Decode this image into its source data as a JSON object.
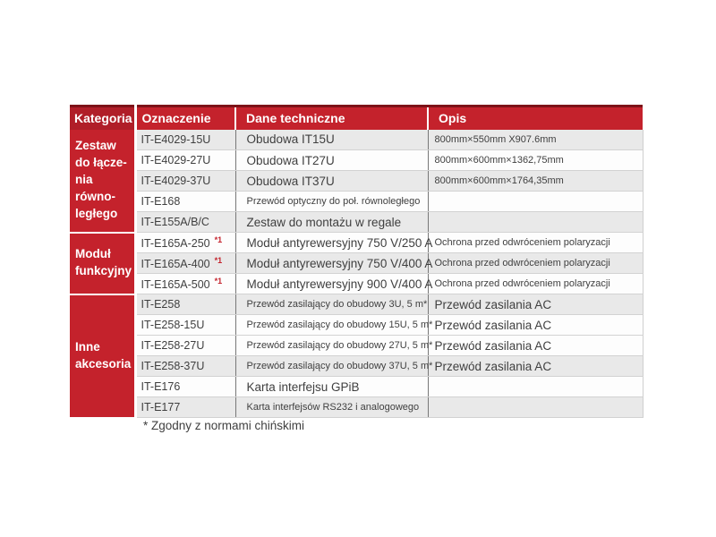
{
  "colors": {
    "header_red": "#c4222c",
    "header_red_dark": "#b01e28",
    "header_top_border": "#7d1218",
    "stripe_gray": "#e9e9e9",
    "text_gray": "#3f3f3f"
  },
  "footnote": "* Zgodny z normami chińskimi",
  "table": {
    "headers": [
      "Kategoria",
      "Oznaczenie",
      "Dane techniczne",
      "Opis"
    ],
    "groups": [
      {
        "label": "Zestaw\ndo łącze-\nnia równo-\nległego",
        "rows": [
          {
            "oznaczenie": "IT-E4029-15U",
            "dane": "Obudowa IT15U",
            "opis": "800mm×550mm X907.6mm",
            "opis_small": true,
            "shaded": true
          },
          {
            "oznaczenie": "IT-E4029-27U",
            "dane": "Obudowa IT27U",
            "opis": "800mm×600mm×1362,75mm",
            "opis_small": true,
            "shaded": false
          },
          {
            "oznaczenie": "IT-E4029-37U",
            "dane": "Obudowa IT37U",
            "opis": "800mm×600mm×1764,35mm",
            "opis_small": true,
            "shaded": true
          },
          {
            "oznaczenie": "IT-E168",
            "dane": "Przewód optyczny do poł. równoległego",
            "dane_small": true,
            "opis": "",
            "shaded": false
          },
          {
            "oznaczenie": "IT-E155A/B/C",
            "dane": "Zestaw do montażu w regale",
            "opis": "",
            "shaded": true
          }
        ]
      },
      {
        "label": "Moduł\nfunkcyjny",
        "rows": [
          {
            "oznaczenie": "IT-E165A-250",
            "sup": "*1",
            "dane": "Moduł antyrewersyjny 750 V/250 A",
            "opis": "Ochrona przed odwróceniem polaryzacji",
            "opis_small": true,
            "shaded": false
          },
          {
            "oznaczenie": "IT-E165A-400",
            "sup": "*1",
            "dane": "Moduł antyrewersyjny 750 V/400 A",
            "opis": "Ochrona przed odwróceniem polaryzacji",
            "opis_small": true,
            "shaded": true
          },
          {
            "oznaczenie": "IT-E165A-500",
            "sup": "*1",
            "dane": "Moduł antyrewersyjny 900 V/400 A",
            "opis": "Ochrona przed odwróceniem polaryzacji",
            "opis_small": true,
            "shaded": false
          }
        ]
      },
      {
        "label": "Inne\nakcesoria",
        "rows": [
          {
            "oznaczenie": "IT-E258",
            "dane": "Przewód zasilający do obudowy 3U, 5 m*",
            "dane_small": true,
            "opis": "Przewód zasilania AC",
            "shaded": true
          },
          {
            "oznaczenie": "IT-E258-15U",
            "dane": "Przewód zasilający do obudowy 15U, 5 m*",
            "dane_small": true,
            "opis": "Przewód zasilania AC",
            "shaded": false
          },
          {
            "oznaczenie": "IT-E258-27U",
            "dane": "Przewód zasilający do obudowy 27U, 5 m*",
            "dane_small": true,
            "opis": "Przewód zasilania AC",
            "shaded": false
          },
          {
            "oznaczenie": "IT-E258-37U",
            "dane": "Przewód zasilający do obudowy 37U, 5 m*",
            "dane_small": true,
            "opis": "Przewód zasilania AC",
            "shaded": true
          },
          {
            "oznaczenie": "IT-E176",
            "dane": "Karta interfejsu GPiB",
            "opis": "",
            "shaded": false
          },
          {
            "oznaczenie": "IT-E177",
            "dane": "Karta interfejsów RS232 i analogowego",
            "dane_small": true,
            "opis": "",
            "shaded": true
          }
        ]
      }
    ]
  }
}
